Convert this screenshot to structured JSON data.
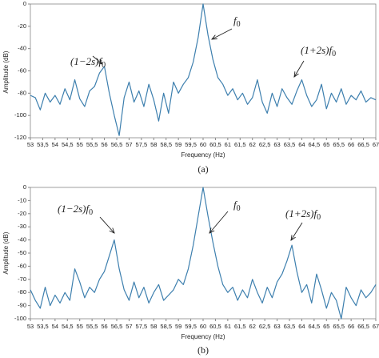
{
  "chart_data": [
    {
      "type": "line",
      "caption": "(a)",
      "x_label": "Frequency (Hz)",
      "y_label": "Amplitude (dB)",
      "x": [
        53,
        53.2,
        53.4,
        53.6,
        53.8,
        54,
        54.2,
        54.4,
        54.6,
        54.8,
        55,
        55.2,
        55.4,
        55.6,
        55.8,
        56,
        56.2,
        56.4,
        56.6,
        56.8,
        57,
        57.2,
        57.4,
        57.6,
        57.8,
        58,
        58.2,
        58.4,
        58.6,
        58.8,
        59,
        59.2,
        59.4,
        59.6,
        59.8,
        60,
        60.2,
        60.4,
        60.6,
        60.8,
        61,
        61.2,
        61.4,
        61.6,
        61.8,
        62,
        62.2,
        62.4,
        62.6,
        62.8,
        63,
        63.2,
        63.4,
        63.6,
        63.8,
        64,
        64.2,
        64.4,
        64.6,
        64.8,
        65,
        65.2,
        65.4,
        65.6,
        65.8,
        66,
        66.2,
        66.4,
        66.6,
        66.8,
        67
      ],
      "series": [
        {
          "color": "#3d7fae",
          "values": [
            -82,
            -84,
            -95,
            -80,
            -88,
            -82,
            -90,
            -76,
            -86,
            -68,
            -85,
            -92,
            -78,
            -74,
            -62,
            -56,
            -80,
            -100,
            -118,
            -84,
            -70,
            -88,
            -78,
            -92,
            -72,
            -86,
            -105,
            -80,
            -98,
            -70,
            -80,
            -72,
            -66,
            -52,
            -30,
            0,
            -28,
            -50,
            -66,
            -72,
            -82,
            -76,
            -86,
            -80,
            -90,
            -84,
            -68,
            -88,
            -98,
            -80,
            -92,
            -76,
            -84,
            -90,
            -78,
            -68,
            -82,
            -92,
            -86,
            -72,
            -94,
            -80,
            -88,
            -76,
            -90,
            -82,
            -86,
            -78,
            -88,
            -84,
            -86
          ]
        }
      ],
      "xlim": [
        53,
        67
      ],
      "ylim": [
        -120,
        0
      ],
      "yticks": [
        0,
        -20,
        -40,
        -60,
        -80,
        -100,
        -120
      ],
      "xticks": [
        53,
        {
          "value": 53.5,
          "label": "53,5"
        },
        54,
        {
          "value": 54.5,
          "label": "54,5"
        },
        55,
        {
          "value": 55.5,
          "label": "55,5"
        },
        56,
        {
          "value": 56.5,
          "label": "56,5"
        },
        57,
        {
          "value": 57.5,
          "label": "57,5"
        },
        58,
        {
          "value": 58.5,
          "label": "58,5"
        },
        59,
        {
          "value": 59.5,
          "label": "59,5"
        },
        60,
        {
          "value": 60.5,
          "label": "60,5"
        },
        61,
        {
          "value": 61.5,
          "label": "61,5"
        },
        62,
        {
          "value": 62.5,
          "label": "62,5"
        },
        63,
        {
          "value": 63.5,
          "label": "63,5"
        },
        64,
        {
          "value": 64.5,
          "label": "64,5"
        },
        65,
        {
          "value": 65.5,
          "label": "65,5"
        },
        66,
        {
          "value": 66.5,
          "label": "66,5"
        },
        67
      ],
      "annotations": [
        "(1−2s)f0",
        "f0",
        "(1+2s)f0"
      ]
    },
    {
      "type": "line",
      "caption": "(b)",
      "x_label": "Frequency (Hz)",
      "y_label": "Amplitude (dB)",
      "x": [
        53,
        53.2,
        53.4,
        53.6,
        53.8,
        54,
        54.2,
        54.4,
        54.6,
        54.8,
        55,
        55.2,
        55.4,
        55.6,
        55.8,
        56,
        56.2,
        56.4,
        56.6,
        56.8,
        57,
        57.2,
        57.4,
        57.6,
        57.8,
        58,
        58.2,
        58.4,
        58.6,
        58.8,
        59,
        59.2,
        59.4,
        59.6,
        59.8,
        60,
        60.2,
        60.4,
        60.6,
        60.8,
        61,
        61.2,
        61.4,
        61.6,
        61.8,
        62,
        62.2,
        62.4,
        62.6,
        62.8,
        63,
        63.2,
        63.4,
        63.6,
        63.8,
        64,
        64.2,
        64.4,
        64.6,
        64.8,
        65,
        65.2,
        65.4,
        65.6,
        65.8,
        66,
        66.2,
        66.4,
        66.6,
        66.8,
        67
      ],
      "series": [
        {
          "color": "#3d7fae",
          "values": [
            -78,
            -86,
            -92,
            -76,
            -90,
            -82,
            -88,
            -80,
            -86,
            -62,
            -72,
            -84,
            -76,
            -80,
            -70,
            -64,
            -52,
            -40,
            -62,
            -78,
            -86,
            -72,
            -84,
            -76,
            -88,
            -80,
            -74,
            -86,
            -82,
            -78,
            -70,
            -74,
            -62,
            -44,
            -22,
            0,
            -22,
            -42,
            -60,
            -74,
            -80,
            -76,
            -86,
            -78,
            -84,
            -70,
            -80,
            -88,
            -76,
            -84,
            -72,
            -66,
            -56,
            -44,
            -64,
            -80,
            -74,
            -88,
            -66,
            -78,
            -92,
            -80,
            -86,
            -100,
            -76,
            -84,
            -90,
            -78,
            -84,
            -80,
            -74
          ]
        }
      ],
      "xlim": [
        53,
        67
      ],
      "ylim": [
        -100,
        0
      ],
      "yticks": [
        0,
        -10,
        -20,
        -30,
        -40,
        -50,
        -60,
        -70,
        -80,
        -90,
        -100
      ],
      "xticks": [
        53,
        {
          "value": 53.5,
          "label": "53,5"
        },
        54,
        {
          "value": 54.5,
          "label": "54,5"
        },
        55,
        {
          "value": 55.5,
          "label": "55,5"
        },
        56,
        {
          "value": 56.5,
          "label": "56,5"
        },
        57,
        {
          "value": 57.5,
          "label": "57,5"
        },
        58,
        {
          "value": 58.5,
          "label": "58,5"
        },
        59,
        {
          "value": 59.5,
          "label": "59,5"
        },
        60,
        {
          "value": 60.5,
          "label": "60,5"
        },
        61,
        {
          "value": 61.5,
          "label": "61,5"
        },
        62,
        {
          "value": 62.5,
          "label": "62,5"
        },
        63,
        {
          "value": 63.5,
          "label": "63,5"
        },
        64,
        {
          "value": 64.5,
          "label": "64,5"
        },
        65,
        {
          "value": 65.5,
          "label": "65,5"
        },
        66,
        {
          "value": 66.5,
          "label": "66,5"
        },
        67
      ],
      "annotations": [
        "(1−2s)f0",
        "f0",
        "(1+2s)f0"
      ]
    }
  ]
}
